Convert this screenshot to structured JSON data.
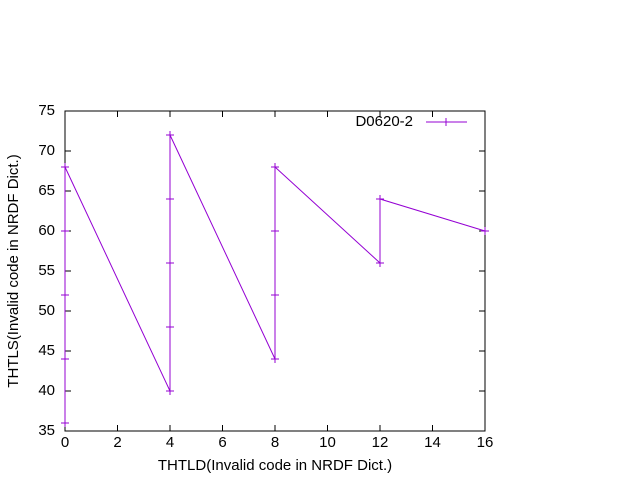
{
  "chart_data": {
    "type": "line",
    "x_label": "THTLD(Invalid code in NRDF Dict.)",
    "y_label": "THTLS(Invalid code in NRDF Dict.)",
    "x": [
      0,
      0,
      0,
      0,
      0,
      4,
      4,
      4,
      4,
      4,
      8,
      8,
      8,
      8,
      12,
      12,
      16
    ],
    "series": [
      {
        "name": "D0620-2",
        "color": "#9400d3",
        "values": [
          36,
          44,
          52,
          60,
          68,
          40,
          48,
          56,
          64,
          72,
          44,
          52,
          60,
          68,
          56,
          64,
          60
        ]
      }
    ],
    "xlim": [
      0,
      16
    ],
    "xticks": [
      0,
      2,
      4,
      6,
      8,
      10,
      12,
      14,
      16
    ],
    "ylim": [
      35,
      75
    ],
    "yticks": [
      35,
      40,
      45,
      50,
      55,
      60,
      65,
      70,
      75
    ],
    "legend": "top-right"
  }
}
